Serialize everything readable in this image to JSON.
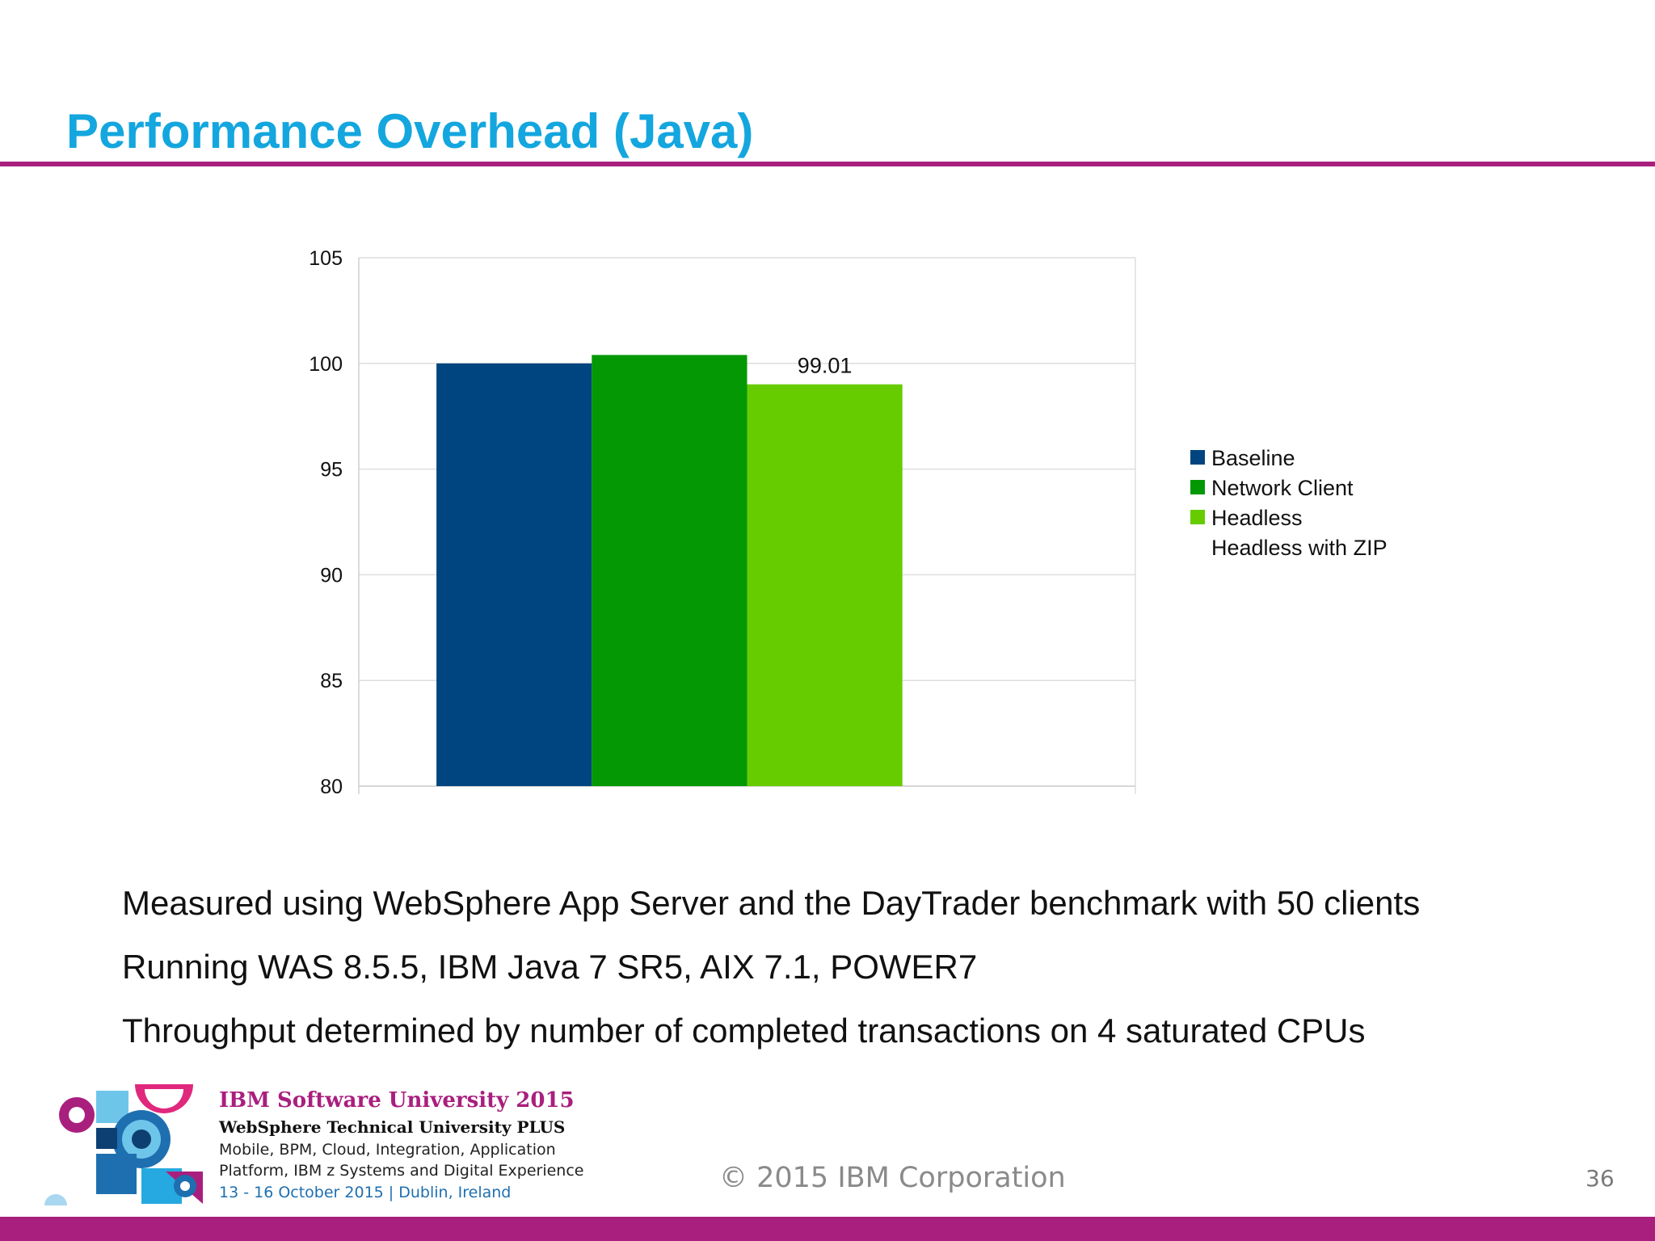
{
  "slide": {
    "title": "Performance Overhead (Java)",
    "accent_color": "#a91f7e",
    "title_color": "#14a6de"
  },
  "chart_data": {
    "type": "bar",
    "categories": [
      ""
    ],
    "series": [
      {
        "name": "Baseline",
        "values": [
          100
        ],
        "color": "#00457f"
      },
      {
        "name": "Network Client",
        "values": [
          100.4
        ],
        "color": "#039804"
      },
      {
        "name": "Headless",
        "values": [
          99.01
        ],
        "color": "#66cc00"
      },
      {
        "name": "Headless with ZIP",
        "values": [
          null
        ],
        "color": null
      }
    ],
    "data_labels": [
      {
        "series": "Headless",
        "text": "99.01"
      }
    ],
    "ylim": [
      80,
      105
    ],
    "yticks": [
      80,
      85,
      90,
      95,
      100,
      105
    ],
    "grid": true,
    "legend_position": "right",
    "title": "",
    "xlabel": "",
    "ylabel": ""
  },
  "bullets": [
    "Measured using WebSphere App Server and the DayTrader benchmark with 50 clients",
    "Running WAS 8.5.5, IBM Java 7 SR5, AIX 7.1, POWER7",
    "Throughput determined by number of completed transactions on 4 saturated CPUs"
  ],
  "footer": {
    "conference_name": "IBM Software University 2015",
    "conference_subtitle": "WebSphere Technical University PLUS",
    "conference_lines": [
      "Mobile, BPM, Cloud, Integration, Application",
      "Platform, IBM z Systems and Digital Experience"
    ],
    "conference_date": "13 - 16 October 2015 | Dublin, Ireland",
    "copyright": "© 2015 IBM Corporation",
    "page_number": "36"
  }
}
